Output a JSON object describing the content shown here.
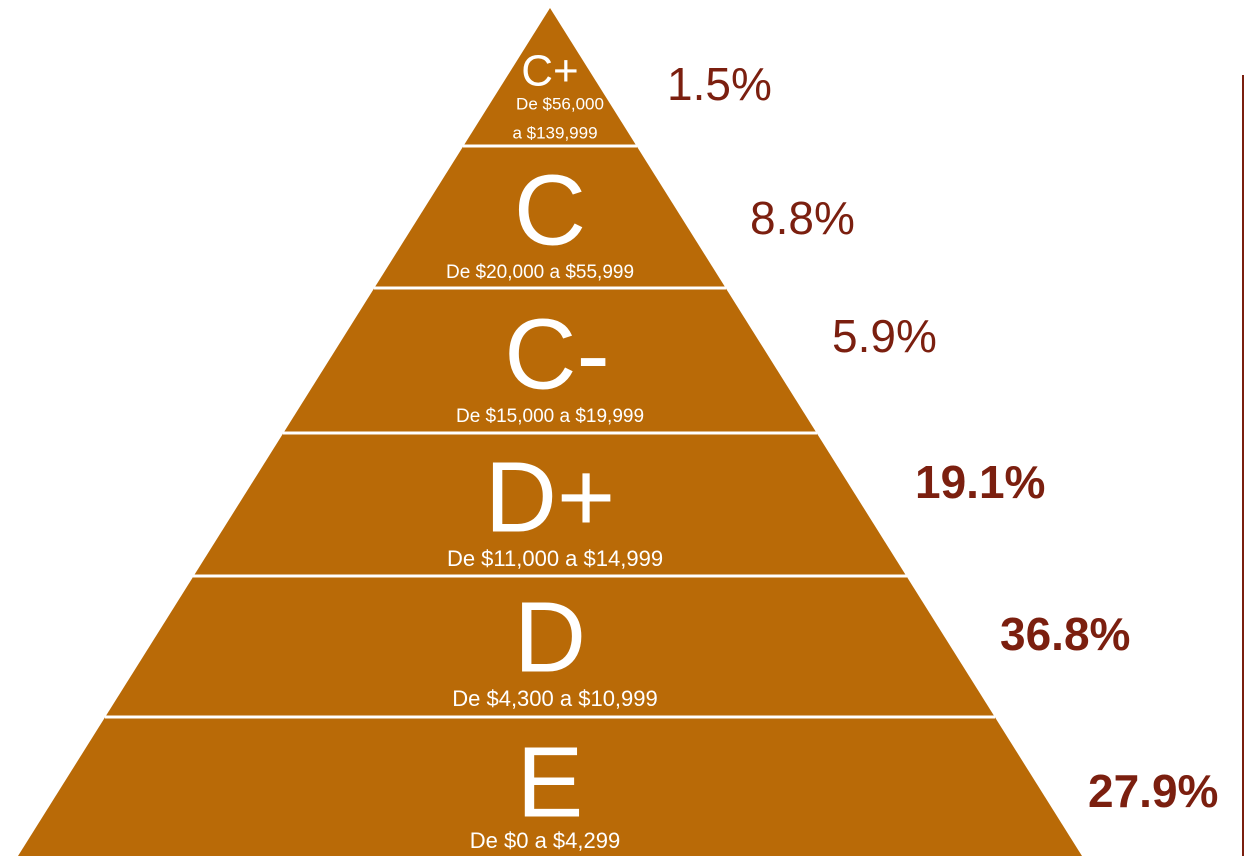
{
  "levels": [
    {
      "name": "C+",
      "range": [
        "De $56,000",
        "a $139,999"
      ],
      "share": "1.5%"
    },
    {
      "name": "C",
      "range": [
        "De $20,000 a $55,999"
      ],
      "share": "8.8%"
    },
    {
      "name": "C-",
      "range": [
        "De $15,000 a $19,999"
      ],
      "share": "5.9%"
    },
    {
      "name": "D+",
      "range": [
        "De $11,000 a $14,999"
      ],
      "share": "19.1%"
    },
    {
      "name": "D",
      "range": [
        "De $4,300 a $10,999"
      ],
      "share": "36.8%"
    },
    {
      "name": "E",
      "range": [
        "De $0 a $4,299"
      ],
      "share": "27.9%"
    }
  ]
}
